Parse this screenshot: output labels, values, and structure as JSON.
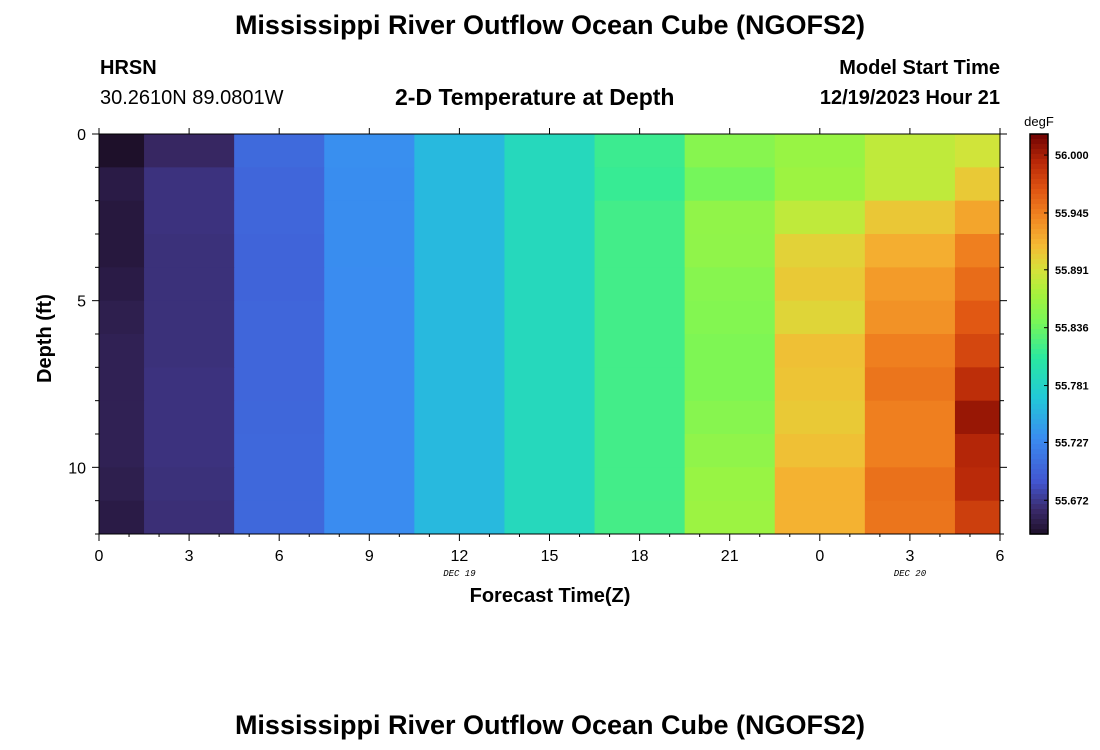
{
  "header": {
    "title": "Mississippi River Outflow Ocean Cube (NGOFS2)",
    "station_name": "HRSN",
    "station_coords": "30.2610N  89.0801W",
    "plot_title": "2-D Temperature at Depth",
    "model_start_label": "Model Start Time",
    "model_start_value": "12/19/2023 Hour 21"
  },
  "footer": {
    "title": "Mississippi River Outflow Ocean Cube (NGOFS2)"
  },
  "chart_data": {
    "type": "heatmap",
    "title": "2-D Temperature at Depth",
    "xlabel": "Forecast Time(Z)",
    "ylabel": "Depth (ft)",
    "x_tick_labels": [
      "0",
      "3",
      "6",
      "9",
      "12",
      "15",
      "18",
      "21",
      "0",
      "3",
      "6"
    ],
    "date_labels": [
      {
        "label": "DEC 19",
        "hour": 12
      },
      {
        "label": "DEC 20",
        "hour": 27
      }
    ],
    "x_range_hours": [
      0,
      30
    ],
    "x_centers_hours": [
      0,
      3,
      6,
      9,
      12,
      15,
      18,
      21,
      24,
      27,
      30
    ],
    "y_tick_labels": [
      "0",
      "5",
      "10"
    ],
    "y_range_ft": [
      0,
      12
    ],
    "y_reversed": true,
    "depth_bins": 12,
    "colorbar": {
      "unit": "degF",
      "min": 55.64,
      "max": 56.02,
      "ticks": [
        "56.000",
        "55.945",
        "55.891",
        "55.836",
        "55.781",
        "55.727",
        "55.672"
      ],
      "tick_values": [
        56.0,
        55.945,
        55.891,
        55.836,
        55.781,
        55.727,
        55.672
      ]
    },
    "values": [
      [
        55.625,
        55.66,
        55.705,
        55.733,
        55.76,
        55.788,
        55.815,
        55.85,
        55.86,
        55.88,
        55.888
      ],
      [
        55.65,
        55.668,
        55.702,
        55.732,
        55.76,
        55.788,
        55.813,
        55.84,
        55.863,
        55.88,
        55.905
      ],
      [
        55.647,
        55.668,
        55.702,
        55.732,
        55.76,
        55.788,
        55.818,
        55.856,
        55.88,
        55.906,
        55.925
      ],
      [
        55.647,
        55.667,
        55.701,
        55.732,
        55.76,
        55.788,
        55.818,
        55.855,
        55.9,
        55.92,
        55.945
      ],
      [
        55.65,
        55.667,
        55.701,
        55.731,
        55.76,
        55.788,
        55.818,
        55.85,
        55.905,
        55.93,
        55.955
      ],
      [
        55.653,
        55.667,
        55.702,
        55.731,
        55.76,
        55.788,
        55.818,
        55.848,
        55.898,
        55.935,
        55.965
      ],
      [
        55.655,
        55.667,
        55.702,
        55.731,
        55.76,
        55.788,
        55.818,
        55.845,
        55.91,
        55.945,
        55.975
      ],
      [
        55.655,
        55.668,
        55.702,
        55.731,
        55.76,
        55.788,
        55.818,
        55.845,
        55.908,
        55.95,
        55.99
      ],
      [
        55.655,
        55.668,
        55.703,
        55.731,
        55.76,
        55.788,
        55.818,
        55.85,
        55.905,
        55.945,
        56.005
      ],
      [
        55.655,
        55.668,
        55.704,
        55.731,
        55.76,
        55.788,
        55.818,
        55.855,
        55.91,
        55.945,
        55.995
      ],
      [
        55.653,
        55.667,
        55.704,
        55.731,
        55.76,
        55.788,
        55.818,
        55.86,
        55.918,
        55.952,
        55.992
      ],
      [
        55.65,
        55.666,
        55.704,
        55.731,
        55.76,
        55.788,
        55.819,
        55.862,
        55.918,
        55.95,
        55.98
      ]
    ],
    "grid": false
  }
}
